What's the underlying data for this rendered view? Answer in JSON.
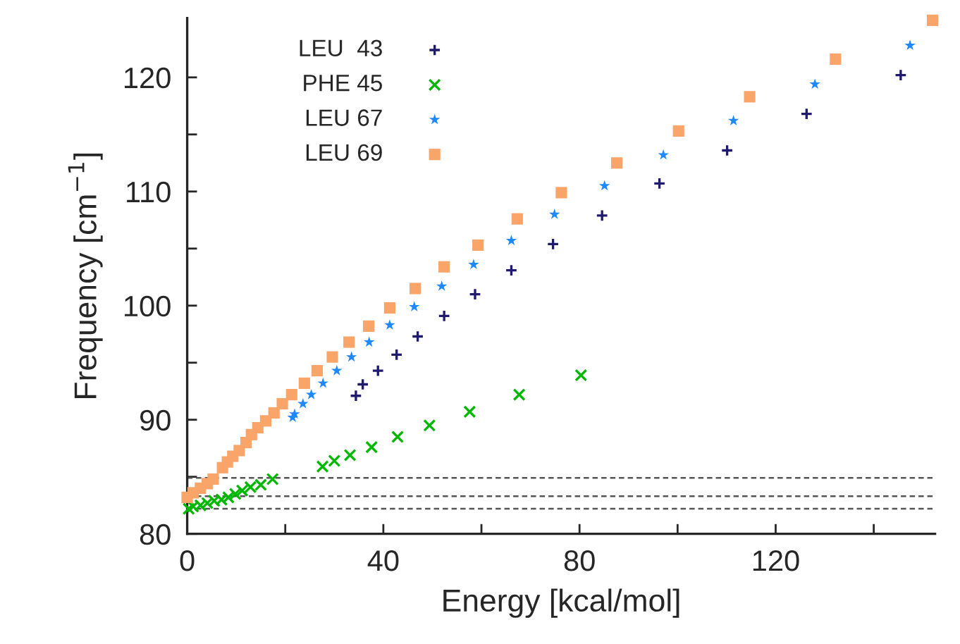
{
  "chart_data": {
    "type": "scatter",
    "xlabel": "Energy [kcal/mol]",
    "ylabel": "Frequency [cm$^{−1}$]",
    "xlim": [
      0,
      152.5
    ],
    "ylim": [
      80,
      125.2
    ],
    "xticks": [
      0,
      {
        "value": 20,
        "label": null
      },
      40,
      {
        "value": 60,
        "label": null
      },
      80,
      {
        "value": 100,
        "label": null
      },
      120,
      {
        "value": 140,
        "label": null
      }
    ],
    "yticks": [
      80,
      {
        "value": 85,
        "label": null
      },
      90,
      {
        "value": 95,
        "label": null
      },
      100,
      {
        "value": 105,
        "label": null
      },
      110,
      {
        "value": 115,
        "label": null
      },
      120
    ],
    "grid": false,
    "legend": "top left",
    "ref_lines": [
      {
        "axis": "y",
        "value": 84.9,
        "color": "#555555",
        "line_style": "dashed"
      },
      {
        "axis": "y",
        "value": 83.3,
        "color": "#555555",
        "line_style": "dashed"
      },
      {
        "axis": "y",
        "value": 82.2,
        "color": "#555555",
        "line_style": "dashed"
      }
    ],
    "series": [
      {
        "name": "LEU  43",
        "color": "#1f1a6e",
        "marker": "plus",
        "x": [
          34.4,
          35.8,
          38.9,
          42.7,
          47.0,
          52.4,
          58.7,
          66.1,
          74.6,
          84.6,
          96.3,
          110.1,
          126.3,
          145.5
        ],
        "values": [
          92.1,
          93.1,
          94.3,
          95.7,
          97.3,
          99.1,
          101.0,
          103.1,
          105.4,
          107.9,
          110.7,
          113.6,
          116.8,
          120.2
        ]
      },
      {
        "name": "PHE 45",
        "color": "#00b800",
        "marker": "cross",
        "x": [
          0.3,
          1.2,
          2.7,
          4.1,
          5.5,
          7.0,
          8.4,
          9.8,
          11.2,
          12.9,
          15.0,
          17.4,
          27.6,
          30.0,
          33.2,
          37.6,
          42.9,
          49.4,
          57.6,
          67.7,
          80.3
        ],
        "values": [
          82.2,
          82.4,
          82.5,
          82.7,
          82.9,
          83.0,
          83.2,
          83.5,
          83.8,
          84.1,
          84.3,
          84.8,
          85.9,
          86.4,
          86.9,
          87.6,
          88.5,
          89.5,
          90.7,
          92.2,
          93.9
        ]
      },
      {
        "name": "LEU 67",
        "color": "#1e88ff",
        "marker": "star",
        "x": [
          21.5,
          21.9,
          23.6,
          25.3,
          27.7,
          30.5,
          33.5,
          37.1,
          41.3,
          46.3,
          51.9,
          58.4,
          66.1,
          74.9,
          85.1,
          97.1,
          111.4,
          128.0,
          147.4
        ],
        "values": [
          90.2,
          90.5,
          91.4,
          92.2,
          93.2,
          94.3,
          95.5,
          96.8,
          98.3,
          99.9,
          101.7,
          103.6,
          105.7,
          108.0,
          110.5,
          113.2,
          116.2,
          119.4,
          122.8
        ]
      },
      {
        "name": "LEU 69",
        "color": "#f9a56a",
        "marker": "square",
        "x": [
          0,
          1.2,
          2.7,
          4.1,
          5.3,
          7.2,
          8.2,
          9.3,
          10.6,
          12.0,
          13.1,
          14.4,
          16.0,
          17.7,
          19.4,
          21.3,
          23.9,
          26.5,
          29.6,
          33.0,
          37.0,
          41.3,
          46.5,
          52.4,
          59.3,
          67.3,
          76.3,
          87.6,
          100.2,
          114.7,
          132.2,
          152.0
        ],
        "values": [
          83.2,
          83.6,
          84.0,
          84.4,
          84.8,
          85.8,
          86.3,
          86.8,
          87.3,
          88.0,
          88.7,
          89.3,
          89.9,
          90.6,
          91.4,
          92.2,
          93.2,
          94.3,
          95.5,
          96.8,
          98.2,
          99.8,
          101.5,
          103.4,
          105.3,
          107.6,
          109.9,
          112.5,
          115.3,
          118.3,
          121.6,
          125.0
        ]
      }
    ]
  }
}
